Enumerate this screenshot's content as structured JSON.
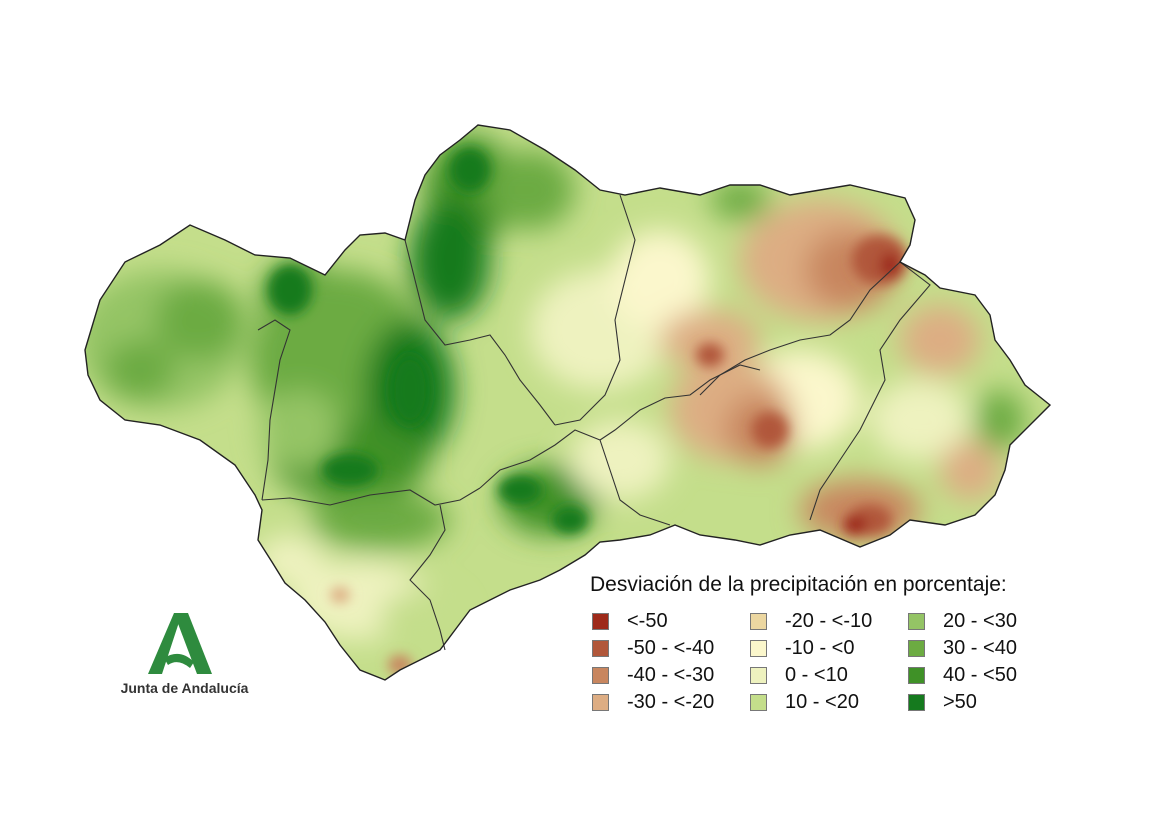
{
  "legend": {
    "title": "Desviación de la precipitación en porcentaje:",
    "items": [
      {
        "label": "<-50",
        "color": "#9e2a1a"
      },
      {
        "label": "-50 - <-40",
        "color": "#b1573a"
      },
      {
        "label": "-40 - <-30",
        "color": "#c8865f"
      },
      {
        "label": "-30 - <-20",
        "color": "#ddad83"
      },
      {
        "label": "-20 - <-10",
        "color": "#ecd7a1"
      },
      {
        "label": "-10 - <0",
        "color": "#fbf7cc"
      },
      {
        "label": "0 - <10",
        "color": "#eef2bf"
      },
      {
        "label": "10 - <20",
        "color": "#c4de8b"
      },
      {
        "label": "20 - <30",
        "color": "#94c465"
      },
      {
        "label": "30 - <40",
        "color": "#6cab42"
      },
      {
        "label": "40 - <50",
        "color": "#3f9127"
      },
      {
        "label": ">50",
        "color": "#157a1e"
      }
    ]
  },
  "logo": {
    "text": "Junta de Andalucía",
    "icon": "junta-andalucia-logo",
    "color": "#2e8b3e"
  },
  "map": {
    "region": "Andalucía",
    "outline_color": "#222222"
  }
}
